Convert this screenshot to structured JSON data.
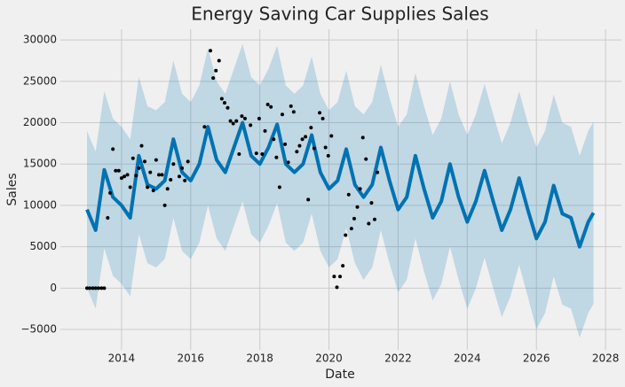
{
  "chart_data": {
    "type": "forecast",
    "title": "Energy Saving Car Supplies Sales",
    "x_label": "Date",
    "y_label": "Sales",
    "xlim": [
      2012.23,
      2028.46
    ],
    "ylim": [
      -7460,
      31300
    ],
    "xticks": [
      2014,
      2016,
      2018,
      2020,
      2022,
      2024,
      2026,
      2028
    ],
    "yticks": [
      {
        "value": -5000,
        "label": "−5000"
      },
      0,
      5000,
      10000,
      15000,
      20000,
      25000,
      30000
    ],
    "grid": true,
    "forecast": {
      "color": "#0072b2",
      "x": [
        2013,
        2013.25,
        2013.5,
        2013.75,
        2014,
        2014.25,
        2014.5,
        2014.75,
        2015,
        2015.25,
        2015.5,
        2015.75,
        2016,
        2016.25,
        2016.5,
        2016.75,
        2017,
        2017.25,
        2017.5,
        2017.75,
        2018,
        2018.25,
        2018.5,
        2018.75,
        2019,
        2019.25,
        2019.5,
        2019.75,
        2020,
        2020.25,
        2020.5,
        2020.75,
        2021,
        2021.25,
        2021.5,
        2021.75,
        2022,
        2022.25,
        2022.5,
        2022.75,
        2023,
        2023.25,
        2023.5,
        2023.75,
        2024,
        2024.25,
        2024.5,
        2024.75,
        2025,
        2025.25,
        2025.5,
        2025.75,
        2026,
        2026.25,
        2026.5,
        2026.75,
        2027,
        2027.25,
        2027.5,
        2027.65
      ],
      "values": [
        9500,
        7000,
        14300,
        11000,
        10000,
        8500,
        16000,
        12500,
        12000,
        13000,
        18000,
        14000,
        13000,
        15000,
        19500,
        15500,
        14000,
        17000,
        20000,
        16000,
        15000,
        17000,
        19800,
        15000,
        14000,
        15000,
        18500,
        14000,
        12000,
        13000,
        16800,
        12500,
        11000,
        12500,
        17000,
        13000,
        9500,
        11000,
        16000,
        12000,
        8500,
        10500,
        15000,
        11000,
        8000,
        10500,
        14200,
        10500,
        7000,
        9500,
        13300,
        9500,
        6000,
        8000,
        12400,
        9000,
        8500,
        5000,
        8000,
        9100
      ],
      "lower": [
        0,
        -2500,
        4800,
        1500,
        500,
        -1000,
        6500,
        3000,
        2500,
        3500,
        8500,
        4500,
        3500,
        5500,
        10000,
        6000,
        4500,
        7500,
        10500,
        6500,
        5500,
        7500,
        10300,
        5500,
        4500,
        5500,
        9000,
        4500,
        2500,
        3500,
        7300,
        3000,
        1000,
        2500,
        7000,
        3000,
        -500,
        1000,
        6000,
        2000,
        -1500,
        500,
        5000,
        1000,
        -2500,
        0,
        3700,
        0,
        -3500,
        -1000,
        2800,
        -1000,
        -5000,
        -3000,
        1400,
        -2000,
        -2500,
        -6000,
        -3000,
        -1900
      ],
      "upper": [
        19000,
        16500,
        23800,
        20500,
        19500,
        18000,
        25500,
        22000,
        21500,
        22500,
        27500,
        23500,
        22500,
        24500,
        29000,
        25000,
        23500,
        26500,
        29500,
        25500,
        24500,
        26500,
        29300,
        24500,
        23500,
        24500,
        28000,
        23500,
        21500,
        22500,
        26300,
        22000,
        21000,
        22500,
        27000,
        23000,
        19500,
        21000,
        26000,
        22000,
        18500,
        20500,
        25000,
        21000,
        18500,
        21000,
        24700,
        21000,
        17500,
        20000,
        23800,
        20000,
        17000,
        19000,
        23400,
        20000,
        19500,
        16000,
        19000,
        20100
      ]
    },
    "actual": {
      "color": "#000000",
      "x": [
        2013,
        2013.08,
        2013.17,
        2013.25,
        2013.33,
        2013.42,
        2013.5,
        2013.6,
        2013.67,
        2013.75,
        2013.83,
        2013.92,
        2014,
        2014.08,
        2014.17,
        2014.25,
        2014.33,
        2014.42,
        2014.5,
        2014.58,
        2014.67,
        2014.75,
        2014.83,
        2014.92,
        2015,
        2015.08,
        2015.17,
        2015.25,
        2015.33,
        2015.42,
        2015.5,
        2015.67,
        2015.75,
        2015.83,
        2015.92,
        2016.4,
        2016.57,
        2016.65,
        2016.73,
        2016.82,
        2016.9,
        2016.98,
        2017.07,
        2017.15,
        2017.23,
        2017.32,
        2017.4,
        2017.48,
        2017.57,
        2017.73,
        2017.9,
        2017.98,
        2018.07,
        2018.15,
        2018.23,
        2018.32,
        2018.4,
        2018.48,
        2018.57,
        2018.65,
        2018.73,
        2018.82,
        2018.9,
        2018.98,
        2019.07,
        2019.15,
        2019.23,
        2019.32,
        2019.4,
        2019.48,
        2019.57,
        2019.73,
        2019.82,
        2019.9,
        2019.98,
        2020.07,
        2020.15,
        2020.23,
        2020.32,
        2020.4,
        2020.48,
        2020.57,
        2020.65,
        2020.73,
        2020.82,
        2020.9,
        2020.98,
        2021.07,
        2021.15,
        2021.23,
        2021.32,
        2021.4
      ],
      "values": [
        0,
        0,
        0,
        0,
        0,
        0,
        0,
        8500,
        11500,
        16800,
        14200,
        14200,
        13300,
        13500,
        13700,
        12200,
        15700,
        13600,
        14500,
        17200,
        15300,
        12200,
        14000,
        11800,
        15500,
        13700,
        13700,
        10000,
        12000,
        13100,
        15000,
        13500,
        14500,
        13000,
        15300,
        19500,
        28700,
        25400,
        26300,
        27500,
        22900,
        22400,
        21800,
        20200,
        19900,
        20200,
        16200,
        20800,
        20500,
        19700,
        16300,
        20500,
        16200,
        19000,
        22200,
        21900,
        18000,
        15800,
        12200,
        21000,
        17400,
        15200,
        22000,
        21300,
        16500,
        17200,
        18000,
        18300,
        10700,
        19400,
        16900,
        21200,
        20500,
        17000,
        16000,
        18400,
        1400,
        100,
        1400,
        2700,
        6400,
        11300,
        7200,
        8400,
        9800,
        12000,
        18200,
        15600,
        7800,
        10300,
        8300,
        14000
      ]
    }
  }
}
